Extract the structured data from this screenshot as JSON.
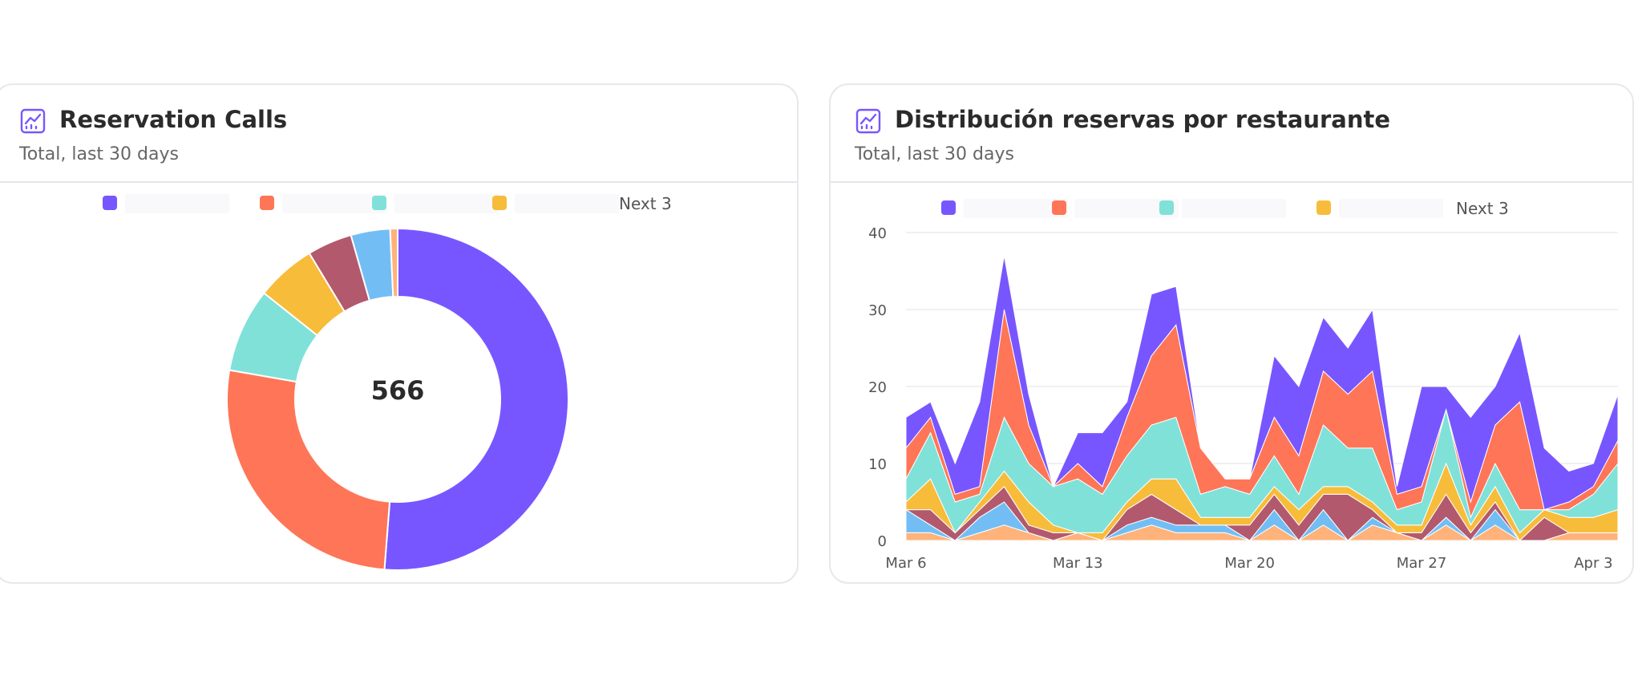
{
  "cards": [
    {
      "title": "Reservation Calls",
      "subtitle": "Total, last 30 days",
      "legend_more": "Next 3",
      "legend_colors": [
        "#7856ff",
        "#ff7557",
        "#80e1d9",
        "#f8bc3b"
      ]
    },
    {
      "title": "Distribución reservas por restaurante",
      "subtitle": "Total, last 30 days",
      "legend_more": "Next 3",
      "legend_colors": [
        "#7856ff",
        "#ff7557",
        "#80e1d9",
        "#f8bc3b"
      ]
    }
  ],
  "chart_data": [
    {
      "type": "pie",
      "title": "Reservation Calls",
      "center_label": "566",
      "total": 566,
      "slices": [
        {
          "value": 290,
          "color": "#7856ff"
        },
        {
          "value": 150,
          "color": "#ff7557"
        },
        {
          "value": 45,
          "color": "#80e1d9"
        },
        {
          "value": 32,
          "color": "#f8bc3b"
        },
        {
          "value": 24,
          "color": "#b2596e"
        },
        {
          "value": 21,
          "color": "#72bef4"
        },
        {
          "value": 4,
          "color": "#ffb27a"
        }
      ]
    },
    {
      "type": "area",
      "stacked": true,
      "title": "Distribución reservas por restaurante",
      "ylim": [
        0,
        40
      ],
      "y_ticks": [
        0,
        10,
        20,
        30,
        40
      ],
      "x": [
        "Mar 6",
        "Mar 7",
        "Mar 8",
        "Mar 9",
        "Mar 10",
        "Mar 11",
        "Mar 12",
        "Mar 13",
        "Mar 14",
        "Mar 15",
        "Mar 16",
        "Mar 17",
        "Mar 18",
        "Mar 19",
        "Mar 20",
        "Mar 21",
        "Mar 22",
        "Mar 23",
        "Mar 24",
        "Mar 25",
        "Mar 26",
        "Mar 27",
        "Mar 28",
        "Mar 29",
        "Mar 30",
        "Mar 31",
        "Apr 1",
        "Apr 2",
        "Apr 3",
        "Apr 4"
      ],
      "x_tick_labels": [
        "Mar 6",
        "Mar 13",
        "Mar 20",
        "Mar 27",
        "Apr 3"
      ],
      "x_tick_indices": [
        0,
        7,
        14,
        21,
        28
      ],
      "series": [
        {
          "color": "#ffb27a",
          "values": [
            1,
            1,
            0,
            1,
            2,
            1,
            0,
            1,
            0,
            1,
            2,
            1,
            1,
            1,
            0,
            2,
            0,
            2,
            0,
            2,
            1,
            0,
            2,
            0,
            2,
            0,
            0,
            1,
            1,
            1
          ]
        },
        {
          "color": "#72bef4",
          "values": [
            3,
            1,
            0,
            2,
            3,
            0,
            0,
            0,
            0,
            1,
            1,
            1,
            1,
            1,
            0,
            2,
            0,
            2,
            0,
            1,
            0,
            0,
            1,
            0,
            2,
            0,
            0,
            0,
            0,
            0
          ]
        },
        {
          "color": "#b2596e",
          "values": [
            0,
            2,
            1,
            1,
            2,
            1,
            1,
            0,
            0,
            2,
            3,
            2,
            0,
            0,
            2,
            2,
            2,
            2,
            6,
            1,
            0,
            1,
            3,
            1,
            1,
            0,
            3,
            0,
            0,
            0
          ]
        },
        {
          "color": "#f8bc3b",
          "values": [
            1,
            4,
            0,
            1,
            2,
            3,
            1,
            0,
            1,
            1,
            2,
            4,
            1,
            1,
            1,
            1,
            2,
            1,
            1,
            1,
            1,
            1,
            4,
            1,
            2,
            1,
            1,
            2,
            2,
            3
          ]
        },
        {
          "color": "#80e1d9",
          "values": [
            3,
            6,
            4,
            1,
            7,
            5,
            5,
            7,
            5,
            6,
            7,
            8,
            3,
            4,
            3,
            4,
            2,
            8,
            5,
            7,
            2,
            3,
            7,
            1,
            3,
            3,
            0,
            1,
            3,
            6
          ]
        },
        {
          "color": "#ff7557",
          "values": [
            4,
            2,
            1,
            1,
            14,
            5,
            0,
            2,
            1,
            5,
            9,
            12,
            6,
            1,
            2,
            5,
            5,
            7,
            7,
            10,
            2,
            2,
            0,
            2,
            5,
            14,
            0,
            1,
            1,
            3
          ]
        },
        {
          "color": "#7856ff",
          "values": [
            4,
            2,
            4,
            11,
            7,
            4,
            0,
            4,
            7,
            2,
            8,
            5,
            0,
            0,
            0,
            8,
            9,
            7,
            6,
            8,
            1,
            13,
            3,
            11,
            5,
            9,
            8,
            4,
            3,
            6
          ]
        }
      ]
    }
  ]
}
